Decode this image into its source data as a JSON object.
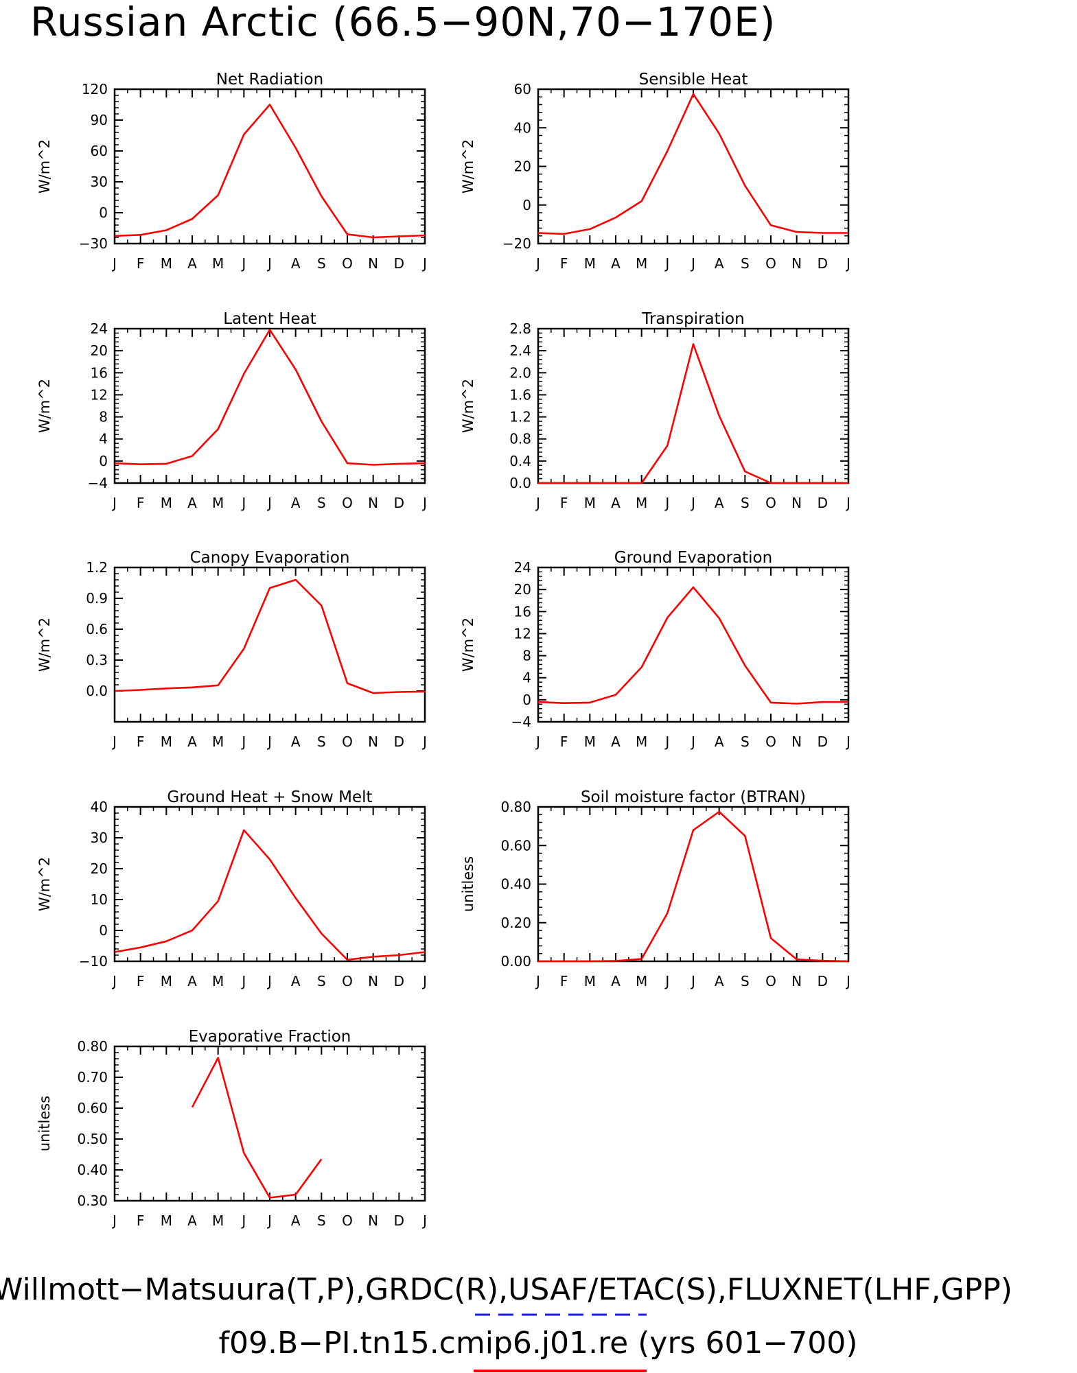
{
  "title": "Russian Arctic (66.5−90N,70−170E)",
  "footer": {
    "line1": "Willmott−Matsuura(T,P),GRDC(R),USAF/ETAC(S),FLUXNET(LHF,GPP)",
    "line2": "f09.B−PI.tn15.cmip6.j01.re (yrs 601−700)",
    "obs_color": "#1a1aff",
    "model_color": "#ff0000"
  },
  "chart_data": [
    {
      "type": "line",
      "title": "Net Radiation",
      "ylabel": "W/m^2",
      "x": [
        "J",
        "F",
        "M",
        "A",
        "M",
        "J",
        "J",
        "A",
        "S",
        "O",
        "N",
        "D",
        "J"
      ],
      "ylim": [
        -30,
        120
      ],
      "yticks": [
        "−30",
        "0",
        "30",
        "60",
        "90",
        "120"
      ],
      "series": [
        {
          "values": [
            -22.5,
            -21.5,
            -17,
            -6,
            17,
            76,
            105,
            63,
            16,
            -21,
            -24,
            -23,
            -22
          ],
          "color": "#ff0000"
        }
      ]
    },
    {
      "type": "line",
      "title": "Sensible Heat",
      "ylabel": "W/m^2",
      "x": [
        "J",
        "F",
        "M",
        "A",
        "M",
        "J",
        "J",
        "A",
        "S",
        "O",
        "N",
        "D",
        "J"
      ],
      "ylim": [
        -20,
        60
      ],
      "yticks": [
        "−20",
        "0",
        "20",
        "40",
        "60"
      ],
      "series": [
        {
          "values": [
            -14.5,
            -15,
            -12.5,
            -6.5,
            2,
            28,
            57.5,
            37,
            10,
            -10.5,
            -14,
            -14.5,
            -14.5
          ],
          "color": "#ff0000"
        }
      ]
    },
    {
      "type": "line",
      "title": "Latent Heat",
      "ylabel": "W/m^2",
      "x": [
        "J",
        "F",
        "M",
        "A",
        "M",
        "J",
        "J",
        "A",
        "S",
        "O",
        "N",
        "D",
        "J"
      ],
      "ylim": [
        -4,
        24
      ],
      "yticks": [
        "−4",
        "0",
        "4",
        "8",
        "12",
        "16",
        "20",
        "24"
      ],
      "series": [
        {
          "values": [
            -0.4,
            -0.6,
            -0.5,
            0.9,
            5.8,
            15.8,
            23.8,
            16.6,
            7.2,
            -0.4,
            -0.7,
            -0.5,
            -0.4
          ],
          "color": "#ff0000"
        }
      ]
    },
    {
      "type": "line",
      "title": "Transpiration",
      "ylabel": "W/m^2",
      "x": [
        "J",
        "F",
        "M",
        "A",
        "M",
        "J",
        "J",
        "A",
        "S",
        "O",
        "N",
        "D",
        "J"
      ],
      "ylim": [
        0,
        2.8
      ],
      "yticks": [
        "0.0",
        "0.4",
        "0.8",
        "1.2",
        "1.6",
        "2.0",
        "2.4",
        "2.8"
      ],
      "series": [
        {
          "values": [
            0,
            0,
            0,
            0,
            0,
            0.68,
            2.52,
            1.22,
            0.21,
            0,
            0,
            0,
            0
          ],
          "color": "#ff0000"
        }
      ]
    },
    {
      "type": "line",
      "title": "Canopy Evaporation",
      "ylabel": "W/m^2",
      "x": [
        "J",
        "F",
        "M",
        "A",
        "M",
        "J",
        "J",
        "A",
        "S",
        "O",
        "N",
        "D",
        "J"
      ],
      "ylim": [
        -0.3,
        1.2
      ],
      "yticks": [
        "0.0",
        "0.3",
        "0.6",
        "0.9",
        "1.2"
      ],
      "series": [
        {
          "values": [
            0,
            0.01,
            0.025,
            0.035,
            0.055,
            0.41,
            1.0,
            1.08,
            0.83,
            0.075,
            -0.02,
            -0.01,
            -0.005
          ],
          "color": "#ff0000"
        }
      ]
    },
    {
      "type": "line",
      "title": "Ground Evaporation",
      "ylabel": "W/m^2",
      "x": [
        "J",
        "F",
        "M",
        "A",
        "M",
        "J",
        "J",
        "A",
        "S",
        "O",
        "N",
        "D",
        "J"
      ],
      "ylim": [
        -4,
        24
      ],
      "yticks": [
        "−4",
        "0",
        "4",
        "8",
        "12",
        "16",
        "20",
        "24"
      ],
      "series": [
        {
          "values": [
            -0.4,
            -0.6,
            -0.5,
            0.9,
            5.9,
            14.9,
            20.4,
            14.8,
            6.2,
            -0.5,
            -0.7,
            -0.4,
            -0.4
          ],
          "color": "#ff0000"
        }
      ]
    },
    {
      "type": "line",
      "title": "Ground Heat + Snow Melt",
      "ylabel": "W/m^2",
      "x": [
        "J",
        "F",
        "M",
        "A",
        "M",
        "J",
        "J",
        "A",
        "S",
        "O",
        "N",
        "D",
        "J"
      ],
      "ylim": [
        -10,
        40
      ],
      "yticks": [
        "−10",
        "0",
        "10",
        "20",
        "30",
        "40"
      ],
      "series": [
        {
          "values": [
            -7,
            -5.5,
            -3.5,
            0,
            9.5,
            32.5,
            23,
            10.5,
            -1,
            -9.5,
            -8.5,
            -8,
            -7
          ],
          "color": "#ff0000"
        }
      ]
    },
    {
      "type": "line",
      "title": "Soil moisture factor (BTRAN)",
      "ylabel": "unitless",
      "x": [
        "J",
        "F",
        "M",
        "A",
        "M",
        "J",
        "J",
        "A",
        "S",
        "O",
        "N",
        "D",
        "J"
      ],
      "ylim": [
        0,
        0.8
      ],
      "yticks": [
        "0.00",
        "0.20",
        "0.40",
        "0.60",
        "0.80"
      ],
      "series": [
        {
          "values": [
            0,
            0,
            0,
            0.002,
            0.012,
            0.25,
            0.68,
            0.775,
            0.65,
            0.12,
            0.01,
            0.003,
            0
          ],
          "color": "#ff0000"
        }
      ]
    },
    {
      "type": "line",
      "title": "Evaporative Fraction",
      "ylabel": "unitless",
      "x": [
        "J",
        "F",
        "M",
        "A",
        "M",
        "J",
        "J",
        "A",
        "S",
        "O",
        "N",
        "D",
        "J"
      ],
      "ylim": [
        0.3,
        0.8
      ],
      "yticks": [
        "0.30",
        "0.40",
        "0.50",
        "0.60",
        "0.70",
        "0.80"
      ],
      "series": [
        {
          "values": [
            null,
            null,
            null,
            0.603,
            0.763,
            0.455,
            0.31,
            0.32,
            0.435,
            null,
            null,
            null,
            null
          ],
          "color": "#ff0000"
        }
      ]
    }
  ]
}
